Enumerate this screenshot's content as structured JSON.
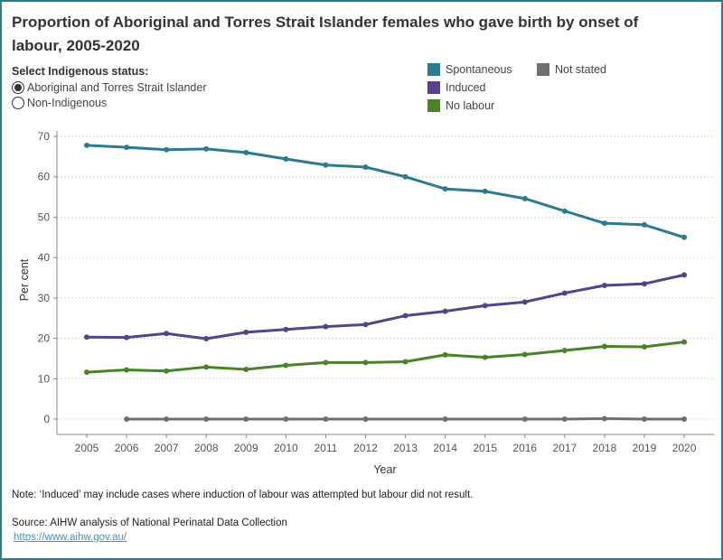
{
  "title": "Proportion of  Aboriginal and Torres Strait Islander females who gave birth by onset of labour, 2005-2020",
  "filter": {
    "label": "Select Indigenous status:",
    "options": [
      "Aboriginal and Torres Strait Islander",
      "Non-Indigenous"
    ],
    "selected": "Aboriginal and Torres Strait Islander"
  },
  "note": "Note:  ‘Induced’ may include cases where induction of labour was attempted but labour did not result.",
  "source": "Source:  AIHW analysis of National Perinatal Data Collection",
  "source_link": "https://www.aihw.gov.au/",
  "chart_data": {
    "type": "line",
    "title": "Proportion of  Aboriginal and Torres Strait Islander females who gave birth by onset of labour, 2005-2020",
    "xlabel": "Year",
    "ylabel": "Per cent",
    "ylim": [
      0,
      70
    ],
    "yticks": [
      "0",
      "10",
      "20",
      "30",
      "40",
      "50",
      "60",
      "70"
    ],
    "grid": true,
    "legend_placement": "top-right",
    "categories": [
      "2005",
      "2006",
      "2007",
      "2008",
      "2009",
      "2010",
      "2011",
      "2012",
      "2013",
      "2014",
      "2015",
      "2016",
      "2017",
      "2018",
      "2019",
      "2020"
    ],
    "series": [
      {
        "name": "Spontaneous",
        "color": "#2b7c93",
        "values": [
          67.8,
          67.3,
          66.7,
          66.9,
          66.0,
          64.4,
          62.9,
          62.4,
          60.0,
          57.0,
          56.4,
          54.6,
          51.5,
          48.5,
          48.1,
          45.0
        ]
      },
      {
        "name": "Induced",
        "color": "#55448a",
        "values": [
          20.3,
          20.2,
          21.2,
          19.9,
          21.5,
          22.2,
          22.9,
          23.4,
          25.6,
          26.7,
          28.1,
          29.0,
          31.2,
          33.1,
          33.5,
          35.7
        ]
      },
      {
        "name": "No labour",
        "color": "#4a8228",
        "values": [
          11.6,
          12.2,
          11.9,
          12.9,
          12.3,
          13.3,
          14.0,
          14.0,
          14.2,
          15.9,
          15.3,
          16.0,
          17.0,
          18.0,
          17.9,
          19.1
        ]
      },
      {
        "name": "Not stated",
        "color": "#6d6f71",
        "values": [
          null,
          0,
          0,
          0,
          0,
          0,
          0,
          0,
          null,
          0,
          null,
          0,
          0,
          0.1,
          0,
          0
        ]
      }
    ]
  }
}
